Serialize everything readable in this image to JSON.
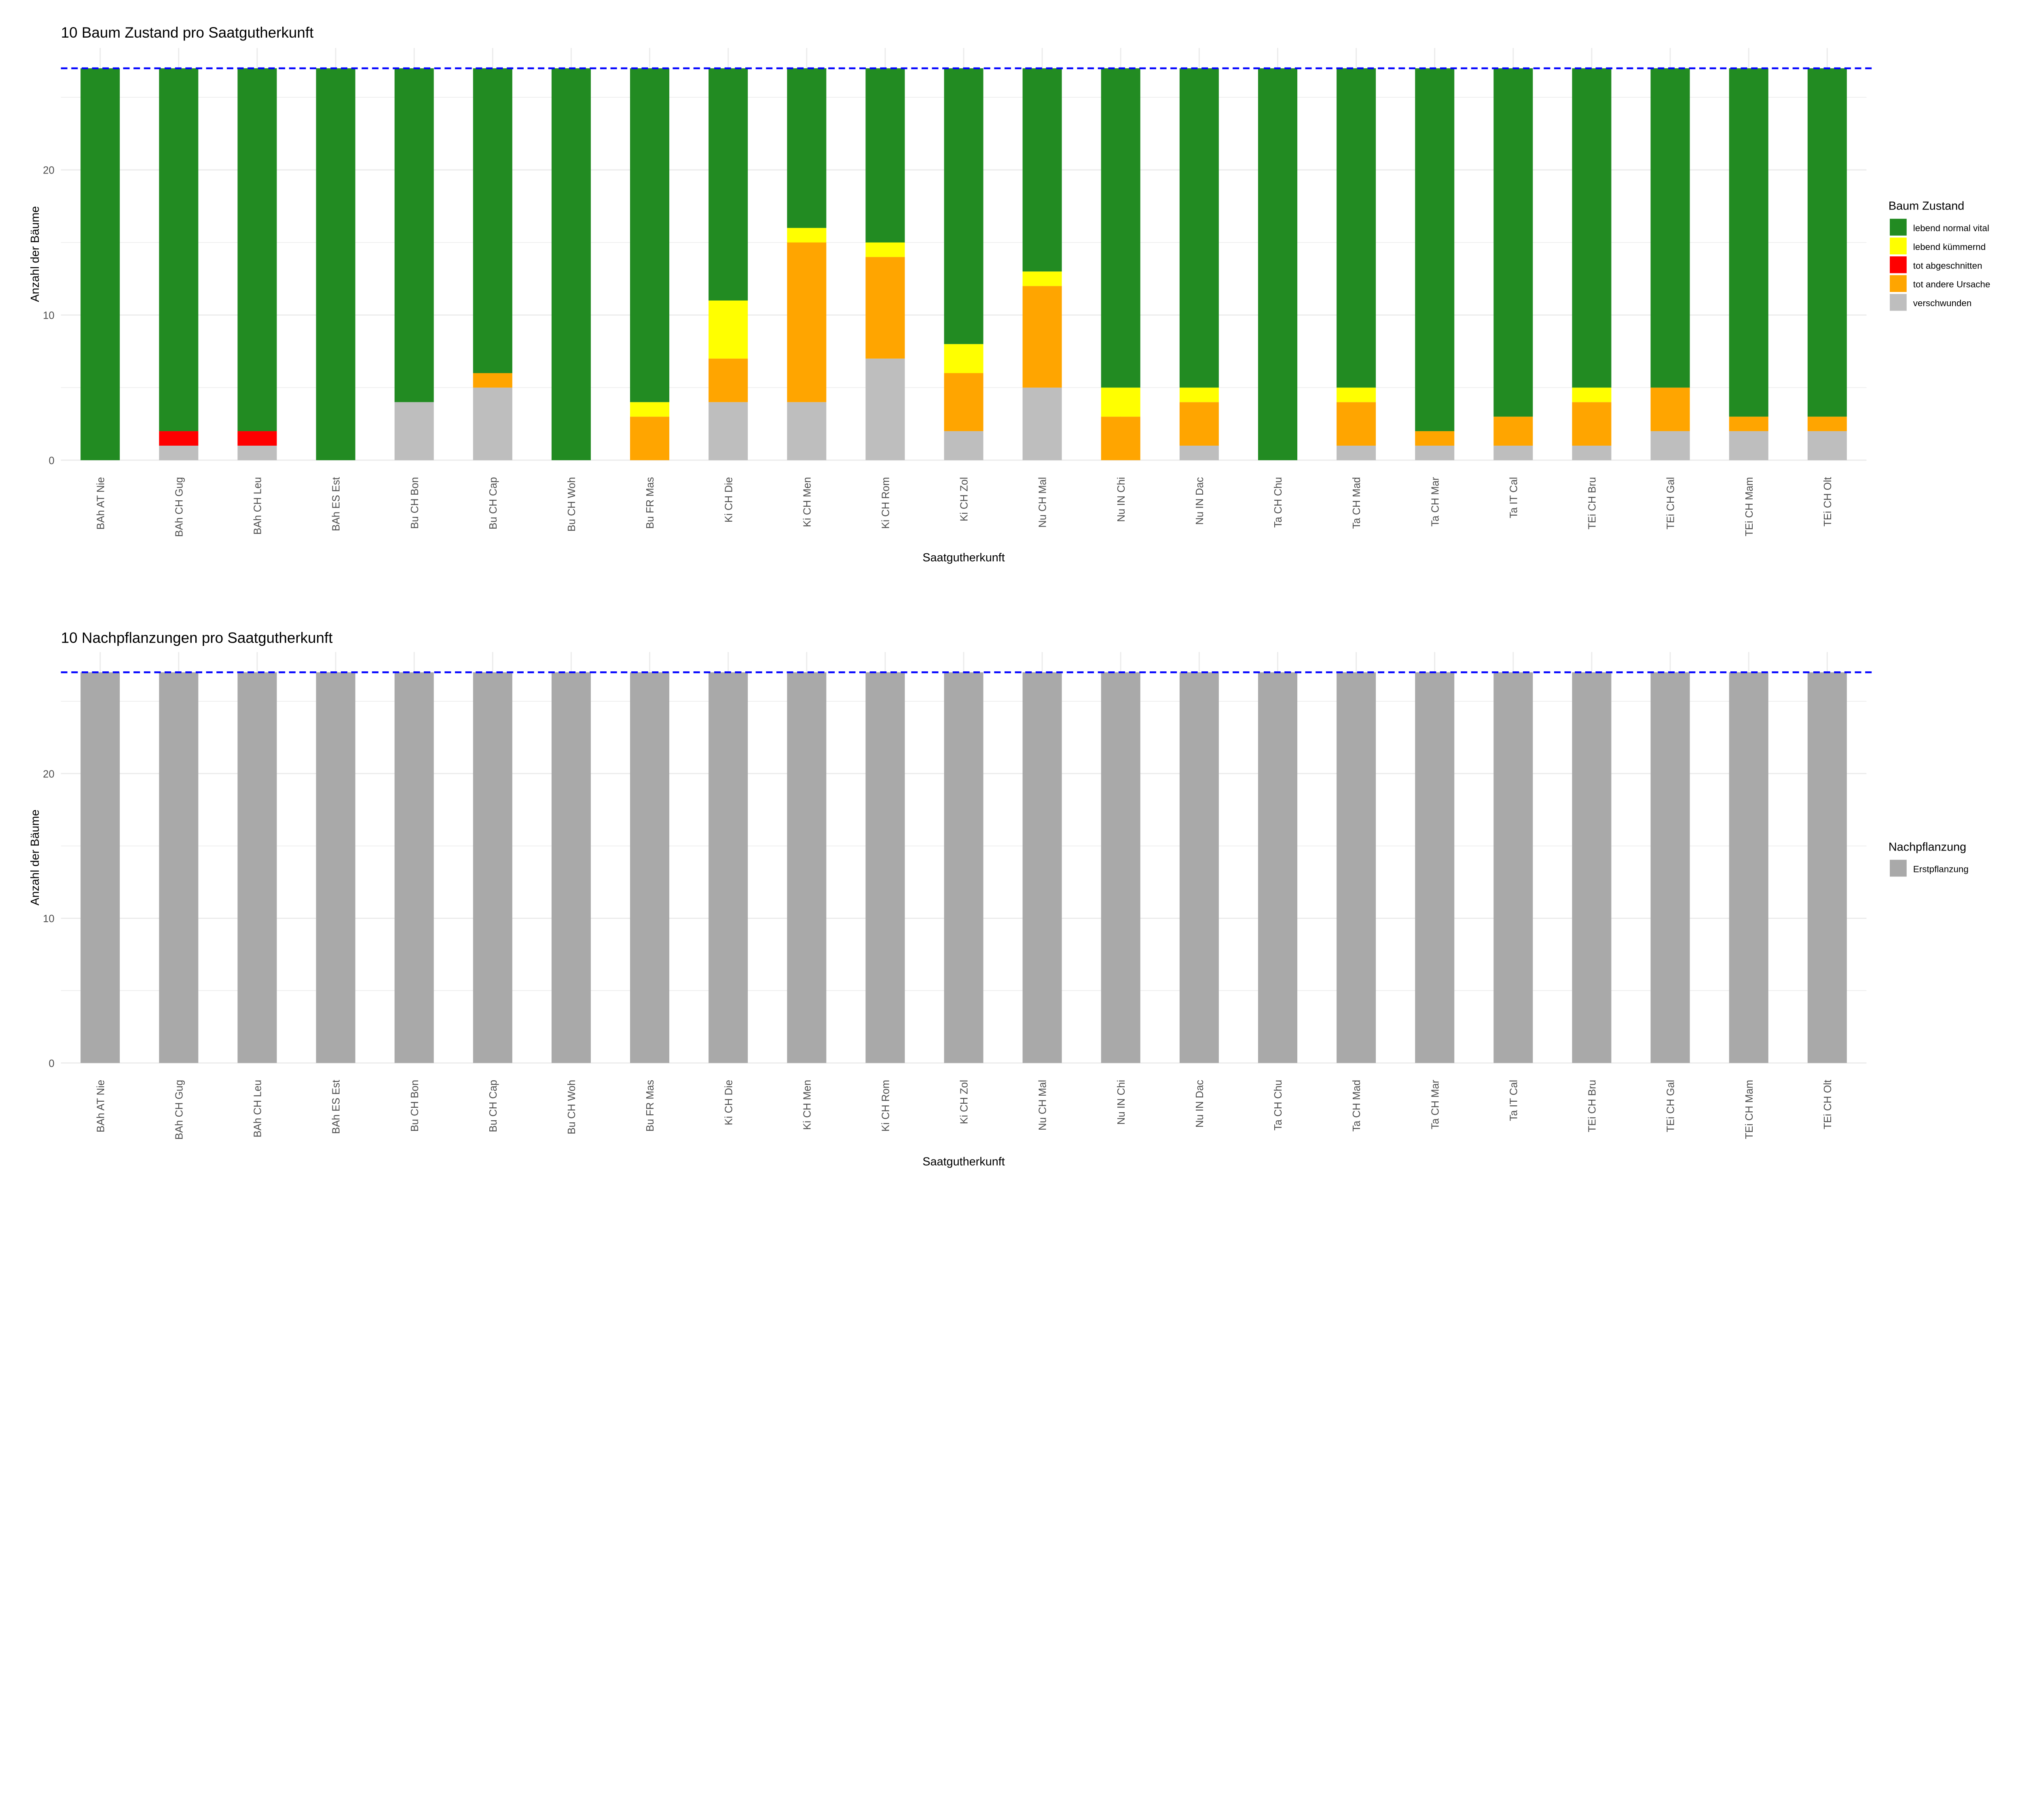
{
  "chart_data": [
    {
      "type": "bar",
      "stacked": true,
      "title": "10 Baum Zustand pro Saatgutherkunft",
      "xlabel": "Saatgutherkunft",
      "ylabel": "Anzahl der Bäume",
      "ylim": [
        0,
        28.4
      ],
      "yticks": [
        0,
        10,
        20
      ],
      "grid": true,
      "reference_line": {
        "y": 27,
        "style": "dashed",
        "color": "#0000FF"
      },
      "legend": {
        "title": "Baum Zustand",
        "position": "right"
      },
      "categories": [
        "BAh AT Nie",
        "BAh CH Gug",
        "BAh CH Leu",
        "BAh ES Est",
        "Bu CH Bon",
        "Bu CH Cap",
        "Bu CH Woh",
        "Bu FR Mas",
        "Ki CH Die",
        "Ki CH Men",
        "Ki CH Rom",
        "Ki CH Zol",
        "Nu CH Mal",
        "Nu IN Chi",
        "Nu IN Dac",
        "Ta CH Chu",
        "Ta CH Mad",
        "Ta CH Mar",
        "Ta IT Cal",
        "TEi CH Bru",
        "TEi CH Gal",
        "TEi CH Mam",
        "TEi CH Olt"
      ],
      "series": [
        {
          "name": "verschwunden",
          "color": "#BEBEBE",
          "values": [
            0,
            1,
            1,
            0,
            4,
            5,
            0,
            0,
            4,
            4,
            7,
            2,
            5,
            0,
            1,
            0,
            1,
            1,
            1,
            1,
            2,
            2,
            2
          ]
        },
        {
          "name": "tot andere Ursache",
          "color": "#FFA500",
          "values": [
            0,
            0,
            0,
            0,
            0,
            1,
            0,
            3,
            3,
            11,
            7,
            4,
            7,
            3,
            3,
            0,
            3,
            1,
            2,
            3,
            3,
            1,
            1
          ]
        },
        {
          "name": "tot abgeschnitten",
          "color": "#FF0000",
          "values": [
            0,
            1,
            1,
            0,
            0,
            0,
            0,
            0,
            0,
            0,
            0,
            0,
            0,
            0,
            0,
            0,
            0,
            0,
            0,
            0,
            0,
            0,
            0
          ]
        },
        {
          "name": "lebend kümmernd",
          "color": "#FFFF00",
          "values": [
            0,
            0,
            0,
            0,
            0,
            0,
            0,
            1,
            4,
            1,
            1,
            2,
            1,
            2,
            1,
            0,
            1,
            0,
            0,
            1,
            0,
            0,
            0
          ]
        },
        {
          "name": "lebend normal vital",
          "color": "#228B22",
          "values": [
            27,
            25,
            25,
            27,
            23,
            21,
            27,
            23,
            16,
            11,
            12,
            19,
            14,
            22,
            22,
            27,
            22,
            25,
            24,
            22,
            22,
            24,
            24
          ]
        }
      ],
      "legend_order": [
        "lebend normal vital",
        "lebend kümmernd",
        "tot abgeschnitten",
        "tot andere Ursache",
        "verschwunden"
      ]
    },
    {
      "type": "bar",
      "stacked": true,
      "title": "10 Nachpflanzungen pro Saatgutherkunft",
      "xlabel": "Saatgutherkunft",
      "ylabel": "Anzahl der Bäume",
      "ylim": [
        0,
        28.4
      ],
      "yticks": [
        0,
        10,
        20
      ],
      "grid": true,
      "reference_line": {
        "y": 27,
        "style": "dashed",
        "color": "#0000FF"
      },
      "legend": {
        "title": "Nachpflanzung",
        "position": "right"
      },
      "categories": [
        "BAh AT Nie",
        "BAh CH Gug",
        "BAh CH Leu",
        "BAh ES Est",
        "Bu CH Bon",
        "Bu CH Cap",
        "Bu CH Woh",
        "Bu FR Mas",
        "Ki CH Die",
        "Ki CH Men",
        "Ki CH Rom",
        "Ki CH Zol",
        "Nu CH Mal",
        "Nu IN Chi",
        "Nu IN Dac",
        "Ta CH Chu",
        "Ta CH Mad",
        "Ta CH Mar",
        "Ta IT Cal",
        "TEi CH Bru",
        "TEi CH Gal",
        "TEi CH Mam",
        "TEi CH Olt"
      ],
      "series": [
        {
          "name": "Erstpflanzung",
          "color": "#A9A9A9",
          "values": [
            27,
            27,
            27,
            27,
            27,
            27,
            27,
            27,
            27,
            27,
            27,
            27,
            27,
            27,
            27,
            27,
            27,
            27,
            27,
            27,
            27,
            27,
            27
          ]
        }
      ],
      "legend_order": [
        "Erstpflanzung"
      ]
    }
  ]
}
